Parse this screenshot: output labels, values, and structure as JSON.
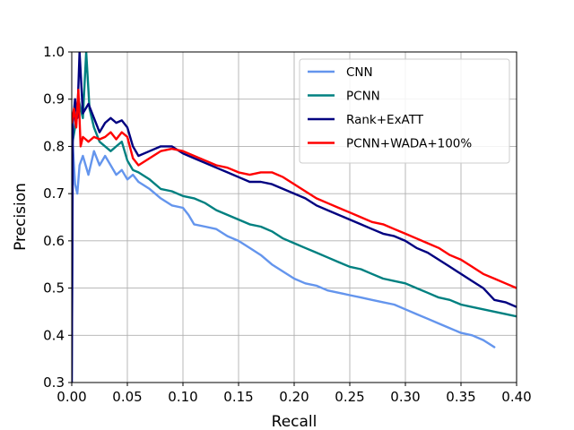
{
  "chart_data": {
    "type": "line",
    "title": "",
    "xlabel": "Recall",
    "ylabel": "Precision",
    "xlim": [
      0.0,
      0.4
    ],
    "ylim": [
      0.3,
      1.0
    ],
    "x_ticks": [
      "0.00",
      "0.05",
      "0.10",
      "0.15",
      "0.20",
      "0.25",
      "0.30",
      "0.35",
      "0.40"
    ],
    "y_ticks": [
      "0.3",
      "0.4",
      "0.5",
      "0.6",
      "0.7",
      "0.8",
      "0.9",
      "1.0"
    ],
    "x_tick_values": [
      0.0,
      0.05,
      0.1,
      0.15,
      0.2,
      0.25,
      0.3,
      0.35,
      0.4
    ],
    "y_tick_values": [
      0.3,
      0.4,
      0.5,
      0.6,
      0.7,
      0.8,
      0.9,
      1.0
    ],
    "grid": true,
    "legend_position": "top-right",
    "series": [
      {
        "name": "CNN",
        "color": "#6495ed",
        "points": [
          [
            0.0,
            0.3
          ],
          [
            0.001,
            0.8
          ],
          [
            0.003,
            0.72
          ],
          [
            0.005,
            0.7
          ],
          [
            0.007,
            0.76
          ],
          [
            0.01,
            0.78
          ],
          [
            0.015,
            0.74
          ],
          [
            0.02,
            0.79
          ],
          [
            0.025,
            0.76
          ],
          [
            0.03,
            0.78
          ],
          [
            0.035,
            0.76
          ],
          [
            0.04,
            0.74
          ],
          [
            0.045,
            0.75
          ],
          [
            0.05,
            0.73
          ],
          [
            0.055,
            0.74
          ],
          [
            0.06,
            0.725
          ],
          [
            0.07,
            0.71
          ],
          [
            0.08,
            0.69
          ],
          [
            0.09,
            0.675
          ],
          [
            0.1,
            0.67
          ],
          [
            0.105,
            0.655
          ],
          [
            0.11,
            0.635
          ],
          [
            0.12,
            0.63
          ],
          [
            0.13,
            0.625
          ],
          [
            0.14,
            0.61
          ],
          [
            0.15,
            0.6
          ],
          [
            0.16,
            0.585
          ],
          [
            0.17,
            0.57
          ],
          [
            0.18,
            0.55
          ],
          [
            0.19,
            0.535
          ],
          [
            0.2,
            0.52
          ],
          [
            0.21,
            0.51
          ],
          [
            0.22,
            0.505
          ],
          [
            0.23,
            0.495
          ],
          [
            0.24,
            0.49
          ],
          [
            0.25,
            0.485
          ],
          [
            0.26,
            0.48
          ],
          [
            0.27,
            0.475
          ],
          [
            0.28,
            0.47
          ],
          [
            0.29,
            0.465
          ],
          [
            0.3,
            0.455
          ],
          [
            0.31,
            0.445
          ],
          [
            0.32,
            0.435
          ],
          [
            0.33,
            0.425
          ],
          [
            0.34,
            0.415
          ],
          [
            0.35,
            0.405
          ],
          [
            0.36,
            0.4
          ],
          [
            0.37,
            0.39
          ],
          [
            0.38,
            0.375
          ]
        ]
      },
      {
        "name": "PCNN",
        "color": "#008080",
        "points": [
          [
            0.0,
            0.8
          ],
          [
            0.003,
            0.84
          ],
          [
            0.006,
            0.9
          ],
          [
            0.01,
            0.86
          ],
          [
            0.013,
            1.0
          ],
          [
            0.016,
            0.88
          ],
          [
            0.02,
            0.84
          ],
          [
            0.025,
            0.81
          ],
          [
            0.03,
            0.8
          ],
          [
            0.035,
            0.79
          ],
          [
            0.04,
            0.8
          ],
          [
            0.045,
            0.81
          ],
          [
            0.05,
            0.77
          ],
          [
            0.055,
            0.75
          ],
          [
            0.06,
            0.745
          ],
          [
            0.07,
            0.73
          ],
          [
            0.08,
            0.71
          ],
          [
            0.09,
            0.705
          ],
          [
            0.1,
            0.695
          ],
          [
            0.11,
            0.69
          ],
          [
            0.12,
            0.68
          ],
          [
            0.13,
            0.665
          ],
          [
            0.14,
            0.655
          ],
          [
            0.15,
            0.645
          ],
          [
            0.16,
            0.635
          ],
          [
            0.17,
            0.63
          ],
          [
            0.18,
            0.62
          ],
          [
            0.19,
            0.605
          ],
          [
            0.2,
            0.595
          ],
          [
            0.21,
            0.585
          ],
          [
            0.22,
            0.575
          ],
          [
            0.23,
            0.565
          ],
          [
            0.24,
            0.555
          ],
          [
            0.25,
            0.545
          ],
          [
            0.26,
            0.54
          ],
          [
            0.27,
            0.53
          ],
          [
            0.28,
            0.52
          ],
          [
            0.29,
            0.515
          ],
          [
            0.3,
            0.51
          ],
          [
            0.31,
            0.5
          ],
          [
            0.32,
            0.49
          ],
          [
            0.33,
            0.48
          ],
          [
            0.34,
            0.475
          ],
          [
            0.35,
            0.465
          ],
          [
            0.36,
            0.46
          ],
          [
            0.37,
            0.455
          ],
          [
            0.38,
            0.45
          ],
          [
            0.39,
            0.445
          ],
          [
            0.4,
            0.44
          ]
        ]
      },
      {
        "name": "Rank+ExATT",
        "color": "#000080",
        "points": [
          [
            0.0,
            0.3
          ],
          [
            0.001,
            0.85
          ],
          [
            0.003,
            0.9
          ],
          [
            0.005,
            0.86
          ],
          [
            0.007,
            1.0
          ],
          [
            0.01,
            0.87
          ],
          [
            0.015,
            0.89
          ],
          [
            0.02,
            0.86
          ],
          [
            0.025,
            0.83
          ],
          [
            0.03,
            0.85
          ],
          [
            0.035,
            0.86
          ],
          [
            0.04,
            0.85
          ],
          [
            0.045,
            0.855
          ],
          [
            0.05,
            0.84
          ],
          [
            0.055,
            0.8
          ],
          [
            0.06,
            0.78
          ],
          [
            0.07,
            0.79
          ],
          [
            0.08,
            0.8
          ],
          [
            0.09,
            0.8
          ],
          [
            0.1,
            0.785
          ],
          [
            0.11,
            0.775
          ],
          [
            0.12,
            0.765
          ],
          [
            0.13,
            0.755
          ],
          [
            0.14,
            0.745
          ],
          [
            0.15,
            0.735
          ],
          [
            0.16,
            0.725
          ],
          [
            0.17,
            0.725
          ],
          [
            0.18,
            0.72
          ],
          [
            0.19,
            0.71
          ],
          [
            0.2,
            0.7
          ],
          [
            0.21,
            0.69
          ],
          [
            0.22,
            0.675
          ],
          [
            0.23,
            0.665
          ],
          [
            0.24,
            0.655
          ],
          [
            0.25,
            0.645
          ],
          [
            0.26,
            0.635
          ],
          [
            0.27,
            0.625
          ],
          [
            0.28,
            0.615
          ],
          [
            0.29,
            0.61
          ],
          [
            0.3,
            0.6
          ],
          [
            0.31,
            0.585
          ],
          [
            0.32,
            0.575
          ],
          [
            0.33,
            0.56
          ],
          [
            0.34,
            0.545
          ],
          [
            0.35,
            0.53
          ],
          [
            0.36,
            0.515
          ],
          [
            0.37,
            0.5
          ],
          [
            0.38,
            0.475
          ],
          [
            0.39,
            0.47
          ],
          [
            0.4,
            0.46
          ]
        ]
      },
      {
        "name": "PCNN+WADA+100%",
        "color": "#ff0000",
        "points": [
          [
            0.0,
            0.85
          ],
          [
            0.002,
            0.88
          ],
          [
            0.004,
            0.84
          ],
          [
            0.006,
            0.92
          ],
          [
            0.008,
            0.8
          ],
          [
            0.01,
            0.82
          ],
          [
            0.015,
            0.81
          ],
          [
            0.02,
            0.82
          ],
          [
            0.025,
            0.815
          ],
          [
            0.03,
            0.82
          ],
          [
            0.035,
            0.83
          ],
          [
            0.04,
            0.815
          ],
          [
            0.045,
            0.83
          ],
          [
            0.05,
            0.82
          ],
          [
            0.055,
            0.775
          ],
          [
            0.06,
            0.76
          ],
          [
            0.07,
            0.775
          ],
          [
            0.08,
            0.79
          ],
          [
            0.09,
            0.795
          ],
          [
            0.1,
            0.79
          ],
          [
            0.11,
            0.78
          ],
          [
            0.12,
            0.77
          ],
          [
            0.13,
            0.76
          ],
          [
            0.14,
            0.755
          ],
          [
            0.15,
            0.745
          ],
          [
            0.16,
            0.74
          ],
          [
            0.17,
            0.745
          ],
          [
            0.18,
            0.745
          ],
          [
            0.19,
            0.735
          ],
          [
            0.2,
            0.72
          ],
          [
            0.21,
            0.705
          ],
          [
            0.22,
            0.69
          ],
          [
            0.23,
            0.68
          ],
          [
            0.24,
            0.67
          ],
          [
            0.25,
            0.66
          ],
          [
            0.26,
            0.65
          ],
          [
            0.27,
            0.64
          ],
          [
            0.28,
            0.635
          ],
          [
            0.29,
            0.625
          ],
          [
            0.3,
            0.615
          ],
          [
            0.31,
            0.605
          ],
          [
            0.32,
            0.595
          ],
          [
            0.33,
            0.585
          ],
          [
            0.34,
            0.57
          ],
          [
            0.35,
            0.56
          ],
          [
            0.36,
            0.545
          ],
          [
            0.37,
            0.53
          ],
          [
            0.38,
            0.52
          ],
          [
            0.39,
            0.51
          ],
          [
            0.4,
            0.5
          ]
        ]
      }
    ]
  }
}
